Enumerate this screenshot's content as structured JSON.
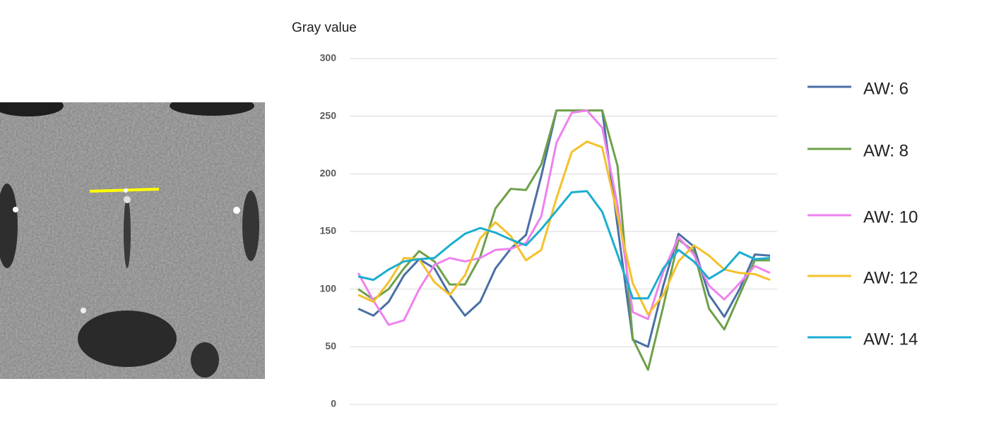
{
  "chart_data": {
    "type": "line",
    "y_label": "Gray value",
    "categories": [
      null,
      null,
      null,
      null,
      null,
      null,
      null,
      null,
      null,
      null,
      null,
      null,
      null,
      null,
      null,
      null,
      null,
      null,
      null,
      null,
      null,
      null,
      null,
      null,
      null,
      null,
      null,
      null
    ],
    "ylim": [
      0,
      300
    ],
    "yticks": [
      0,
      50,
      100,
      150,
      200,
      250,
      300
    ],
    "grid": true,
    "legend": "right",
    "series": [
      {
        "name": "AW: 6",
        "color": "#4a6fa5",
        "values": [
          83,
          77,
          89,
          112,
          126,
          118,
          95,
          77,
          89,
          118,
          135,
          147,
          198,
          255,
          255,
          255,
          255,
          155,
          56,
          50,
          103,
          148,
          137,
          95,
          76,
          100,
          130,
          129
        ]
      },
      {
        "name": "AW: 8",
        "color": "#6ea04a",
        "values": [
          100,
          91,
          100,
          118,
          133,
          124,
          104,
          104,
          128,
          170,
          187,
          186,
          208,
          255,
          255,
          255,
          255,
          207,
          57,
          30,
          85,
          143,
          133,
          83,
          65,
          95,
          125,
          125
        ]
      },
      {
        "name": "AW: 10",
        "color": "#ee82ee",
        "values": [
          114,
          90,
          69,
          73,
          100,
          121,
          127,
          124,
          127,
          134,
          135,
          140,
          163,
          227,
          253,
          255,
          240,
          173,
          80,
          74,
          115,
          145,
          130,
          103,
          91,
          105,
          120,
          114
        ]
      },
      {
        "name": "AW: 12",
        "color": "#f5c02a",
        "values": [
          95,
          89,
          106,
          127,
          126,
          106,
          95,
          112,
          144,
          158,
          146,
          125,
          134,
          179,
          219,
          228,
          223,
          164,
          105,
          78,
          95,
          124,
          138,
          129,
          117,
          114,
          113,
          108
        ]
      },
      {
        "name": "AW: 14",
        "color": "#1aaed0",
        "values": [
          111,
          108,
          117,
          124,
          126,
          127,
          138,
          148,
          153,
          149,
          143,
          138,
          152,
          168,
          184,
          185,
          167,
          130,
          92,
          92,
          118,
          134,
          124,
          109,
          117,
          132,
          126,
          127
        ]
      }
    ]
  }
}
